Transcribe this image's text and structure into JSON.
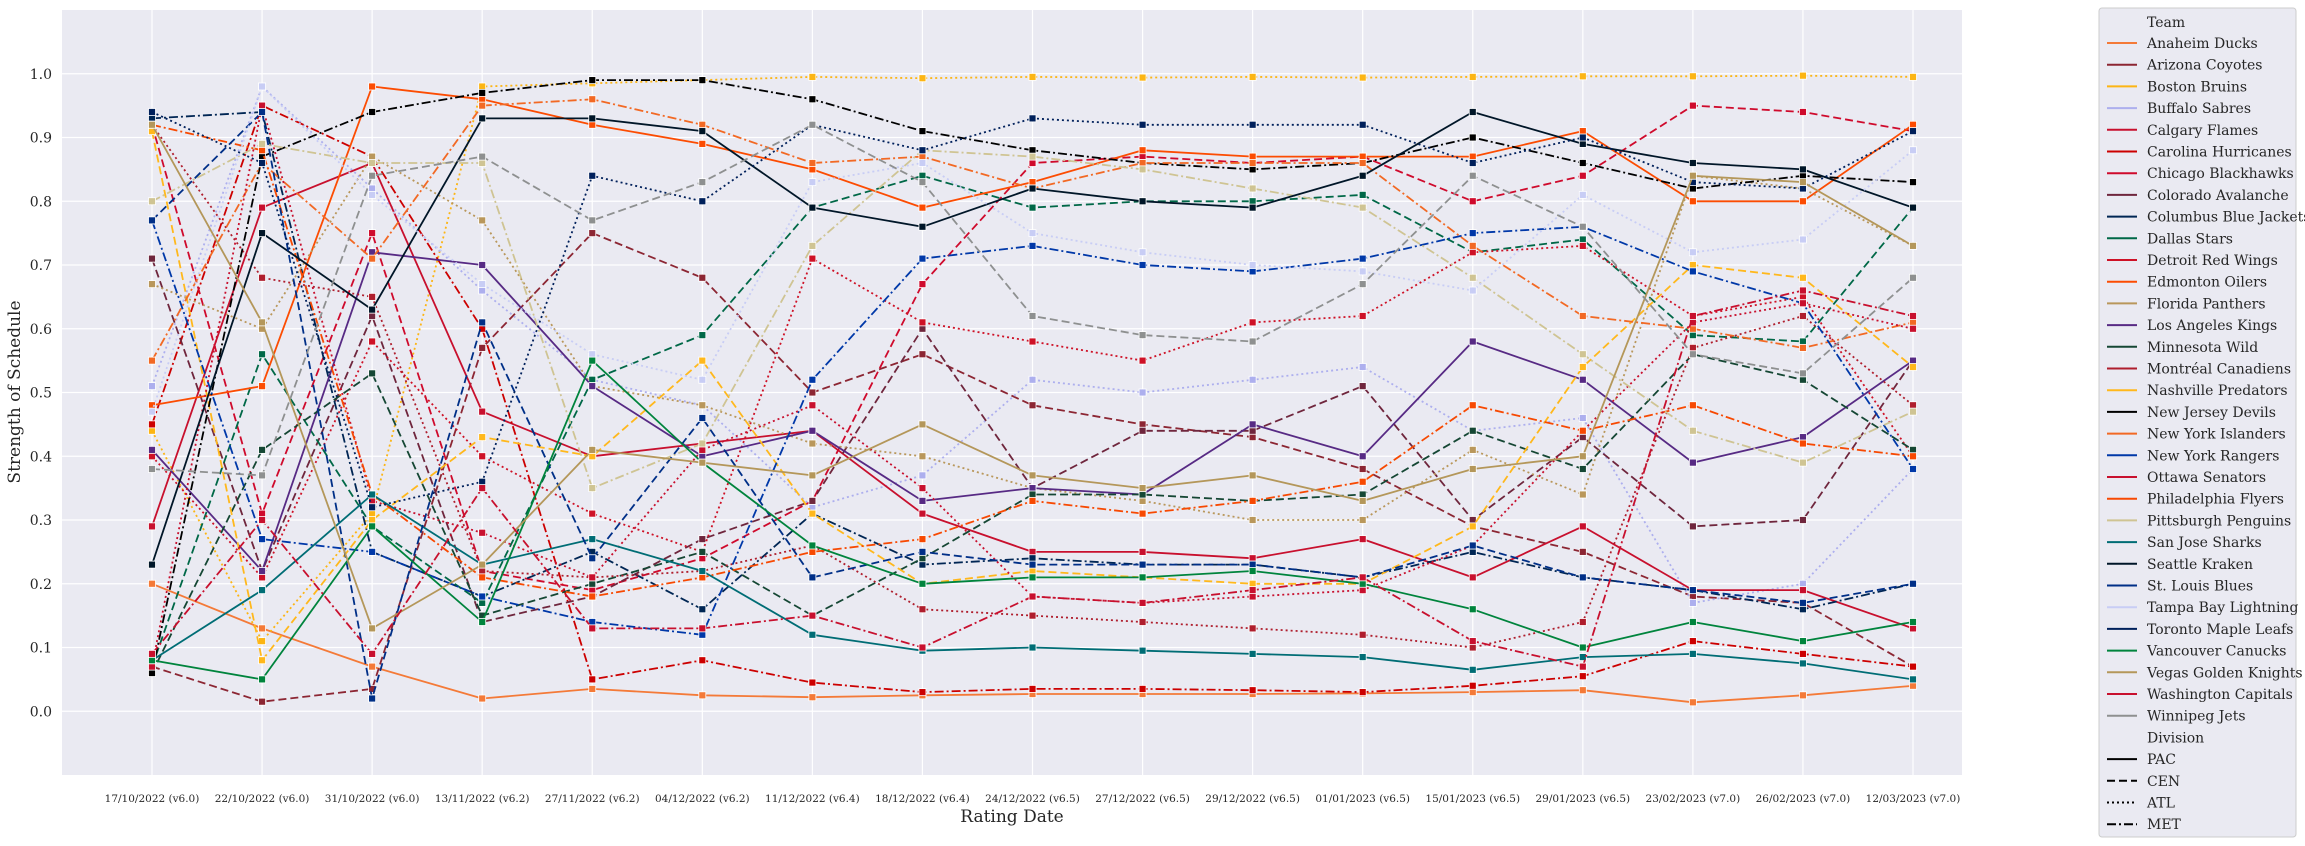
{
  "chart_data": {
    "type": "line",
    "xlabel": "Rating Date",
    "ylabel": "Strength of Schedule",
    "ylim": [
      -0.1,
      1.1
    ],
    "yticks": [
      0.0,
      0.1,
      0.2,
      0.3,
      0.4,
      0.5,
      0.6,
      0.7,
      0.8,
      0.9,
      1.0
    ],
    "ytick_labels": [
      "0.0",
      "0.1",
      "0.2",
      "0.3",
      "0.4",
      "0.5",
      "0.6",
      "0.7",
      "0.8",
      "0.9",
      "1.0"
    ],
    "grid": true,
    "legend_position": "outside-right",
    "categories": [
      "17/10/2022 (v6.0)",
      "22/10/2022 (v6.0)",
      "31/10/2022 (v6.0)",
      "13/11/2022 (v6.2)",
      "27/11/2022 (v6.2)",
      "04/12/2022 (v6.2)",
      "11/12/2022 (v6.4)",
      "18/12/2022 (v6.4)",
      "24/12/2022 (v6.5)",
      "27/12/2022 (v6.5)",
      "29/12/2022 (v6.5)",
      "01/01/2023 (v6.5)",
      "15/01/2023 (v6.5)",
      "29/01/2023 (v6.5)",
      "23/02/2023 (v7.0)",
      "26/02/2023 (v7.0)",
      "12/03/2023 (v7.0)"
    ],
    "legend": {
      "team_title": "Team",
      "division_title": "Division",
      "divisions": [
        {
          "name": "PAC",
          "dash": "solid"
        },
        {
          "name": "CEN",
          "dash": "dashed"
        },
        {
          "name": "ATL",
          "dash": "dotted"
        },
        {
          "name": "MET",
          "dash": "dashdot"
        }
      ]
    },
    "series": [
      {
        "name": "Anaheim Ducks",
        "color": "#f47a38",
        "division": "PAC",
        "values": [
          0.2,
          0.13,
          0.07,
          0.02,
          0.035,
          0.025,
          0.022,
          0.025,
          0.027,
          0.027,
          0.027,
          0.028,
          0.03,
          0.033,
          0.014,
          0.025,
          0.04
        ]
      },
      {
        "name": "Arizona Coyotes",
        "color": "#8c2633",
        "division": "CEN",
        "values": [
          0.07,
          0.015,
          0.035,
          0.57,
          0.75,
          0.68,
          0.5,
          0.56,
          0.48,
          0.45,
          0.43,
          0.38,
          0.29,
          0.25,
          0.18,
          0.17,
          0.07
        ]
      },
      {
        "name": "Boston Bruins",
        "color": "#fcb514",
        "division": "ATL",
        "values": [
          0.44,
          0.11,
          0.31,
          0.98,
          0.985,
          0.99,
          0.995,
          0.993,
          0.995,
          0.994,
          0.995,
          0.994,
          0.995,
          0.996,
          0.996,
          0.997,
          0.995
        ]
      },
      {
        "name": "Buffalo Sabres",
        "color": "#adafee",
        "division": "ATL",
        "values": [
          0.51,
          0.98,
          0.82,
          0.66,
          0.52,
          0.48,
          0.32,
          0.37,
          0.52,
          0.5,
          0.52,
          0.54,
          0.44,
          0.46,
          0.17,
          0.2,
          0.38
        ]
      },
      {
        "name": "Calgary Flames",
        "color": "#c8102e",
        "division": "PAC",
        "values": [
          0.29,
          0.79,
          0.86,
          0.47,
          0.4,
          0.42,
          0.44,
          0.31,
          0.25,
          0.25,
          0.24,
          0.27,
          0.21,
          0.29,
          0.19,
          0.19,
          0.13
        ]
      },
      {
        "name": "Carolina Hurricanes",
        "color": "#cc0000",
        "division": "MET",
        "values": [
          0.45,
          0.95,
          0.87,
          0.6,
          0.05,
          0.08,
          0.045,
          0.03,
          0.035,
          0.035,
          0.033,
          0.03,
          0.04,
          0.055,
          0.11,
          0.09,
          0.07
        ]
      },
      {
        "name": "Chicago Blackhawks",
        "color": "#cf0a2c",
        "division": "CEN",
        "values": [
          0.92,
          0.31,
          0.75,
          0.22,
          0.19,
          0.24,
          0.33,
          0.67,
          0.86,
          0.87,
          0.86,
          0.87,
          0.8,
          0.84,
          0.95,
          0.94,
          0.91
        ]
      },
      {
        "name": "Colorado Avalanche",
        "color": "#6f263d",
        "division": "CEN",
        "values": [
          0.71,
          0.22,
          0.62,
          0.14,
          0.18,
          0.27,
          0.33,
          0.6,
          0.35,
          0.44,
          0.44,
          0.51,
          0.3,
          0.43,
          0.29,
          0.3,
          0.55
        ]
      },
      {
        "name": "Columbus Blue Jackets",
        "color": "#002654",
        "division": "MET",
        "values": [
          0.93,
          0.94,
          0.25,
          0.18,
          0.25,
          0.16,
          0.31,
          0.23,
          0.24,
          0.23,
          0.23,
          0.21,
          0.25,
          0.21,
          0.19,
          0.16,
          0.2
        ]
      },
      {
        "name": "Dallas Stars",
        "color": "#006847",
        "division": "CEN",
        "values": [
          0.07,
          0.56,
          0.29,
          0.17,
          0.52,
          0.59,
          0.79,
          0.84,
          0.79,
          0.8,
          0.8,
          0.81,
          0.72,
          0.74,
          0.59,
          0.58,
          0.79
        ]
      },
      {
        "name": "Detroit Red Wings",
        "color": "#ce1126",
        "division": "ATL",
        "values": [
          0.4,
          0.21,
          0.58,
          0.4,
          0.31,
          0.25,
          0.71,
          0.61,
          0.58,
          0.55,
          0.61,
          0.62,
          0.72,
          0.73,
          0.62,
          0.65,
          0.4
        ]
      },
      {
        "name": "Edmonton Oilers",
        "color": "#fc4c02",
        "division": "PAC",
        "values": [
          0.48,
          0.51,
          0.98,
          0.96,
          0.92,
          0.89,
          0.85,
          0.79,
          0.83,
          0.88,
          0.87,
          0.87,
          0.87,
          0.91,
          0.8,
          0.8,
          0.92
        ]
      },
      {
        "name": "Florida Panthers",
        "color": "#b9975b",
        "division": "ATL",
        "values": [
          0.67,
          0.6,
          0.87,
          0.77,
          0.51,
          0.48,
          0.42,
          0.4,
          0.35,
          0.33,
          0.3,
          0.3,
          0.41,
          0.34,
          0.84,
          0.82,
          0.73
        ]
      },
      {
        "name": "Los Angeles Kings",
        "color": "#572a84",
        "division": "PAC",
        "values": [
          0.41,
          0.22,
          0.72,
          0.7,
          0.51,
          0.4,
          0.44,
          0.33,
          0.35,
          0.34,
          0.45,
          0.4,
          0.58,
          0.52,
          0.39,
          0.43,
          0.55
        ]
      },
      {
        "name": "Minnesota Wild",
        "color": "#154734",
        "division": "CEN",
        "values": [
          0.06,
          0.41,
          0.53,
          0.15,
          0.2,
          0.25,
          0.15,
          0.24,
          0.34,
          0.34,
          0.33,
          0.34,
          0.44,
          0.38,
          0.56,
          0.52,
          0.41
        ]
      },
      {
        "name": "Montréal Canadiens",
        "color": "#af1e2d",
        "division": "ATL",
        "values": [
          0.92,
          0.68,
          0.65,
          0.22,
          0.21,
          0.22,
          0.26,
          0.16,
          0.15,
          0.14,
          0.13,
          0.12,
          0.1,
          0.14,
          0.57,
          0.62,
          0.48
        ]
      },
      {
        "name": "Nashville Predators",
        "color": "#ffb81c",
        "division": "CEN",
        "values": [
          0.91,
          0.08,
          0.3,
          0.43,
          0.4,
          0.55,
          0.31,
          0.2,
          0.22,
          0.21,
          0.2,
          0.2,
          0.29,
          0.54,
          0.7,
          0.68,
          0.54
        ]
      },
      {
        "name": "New Jersey Devils",
        "color": "#000000",
        "division": "MET",
        "values": [
          0.06,
          0.87,
          0.94,
          0.97,
          0.99,
          0.99,
          0.96,
          0.91,
          0.88,
          0.86,
          0.85,
          0.86,
          0.9,
          0.86,
          0.82,
          0.84,
          0.83
        ]
      },
      {
        "name": "New York Islanders",
        "color": "#f26924",
        "division": "MET",
        "values": [
          0.55,
          0.86,
          0.71,
          0.95,
          0.96,
          0.92,
          0.86,
          0.87,
          0.82,
          0.86,
          0.86,
          0.86,
          0.73,
          0.62,
          0.6,
          0.57,
          0.61
        ]
      },
      {
        "name": "New York Rangers",
        "color": "#0038a8",
        "division": "MET",
        "values": [
          0.77,
          0.27,
          0.25,
          0.18,
          0.14,
          0.12,
          0.52,
          0.71,
          0.73,
          0.7,
          0.69,
          0.71,
          0.75,
          0.76,
          0.69,
          0.64,
          0.38
        ]
      },
      {
        "name": "Ottawa Senators",
        "color": "#c8102e",
        "division": "ATL",
        "values": [
          0.07,
          0.95,
          0.33,
          0.28,
          0.21,
          0.41,
          0.48,
          0.35,
          0.18,
          0.17,
          0.18,
          0.19,
          0.26,
          0.44,
          0.61,
          0.64,
          0.6
        ]
      },
      {
        "name": "Philadelphia Flyers",
        "color": "#f74902",
        "division": "MET",
        "values": [
          0.92,
          0.88,
          0.34,
          0.21,
          0.18,
          0.21,
          0.25,
          0.27,
          0.33,
          0.31,
          0.33,
          0.36,
          0.48,
          0.44,
          0.48,
          0.42,
          0.4
        ]
      },
      {
        "name": "Pittsburgh Penguins",
        "color": "#cfc493",
        "division": "MET",
        "values": [
          0.8,
          0.89,
          0.86,
          0.86,
          0.35,
          0.42,
          0.73,
          0.88,
          0.87,
          0.85,
          0.82,
          0.79,
          0.68,
          0.56,
          0.44,
          0.39,
          0.47
        ]
      },
      {
        "name": "San Jose Sharks",
        "color": "#006d75",
        "division": "PAC",
        "values": [
          0.08,
          0.19,
          0.34,
          0.23,
          0.27,
          0.22,
          0.12,
          0.095,
          0.1,
          0.095,
          0.09,
          0.085,
          0.065,
          0.085,
          0.09,
          0.075,
          0.05
        ]
      },
      {
        "name": "Seattle Kraken",
        "color": "#001628",
        "division": "PAC",
        "values": [
          0.23,
          0.75,
          0.63,
          0.93,
          0.93,
          0.91,
          0.79,
          0.76,
          0.82,
          0.8,
          0.79,
          0.84,
          0.94,
          0.89,
          0.86,
          0.85,
          0.79
        ]
      },
      {
        "name": "St. Louis Blues",
        "color": "#002f87",
        "division": "CEN",
        "values": [
          0.77,
          0.94,
          0.02,
          0.61,
          0.24,
          0.46,
          0.21,
          0.25,
          0.23,
          0.23,
          0.23,
          0.21,
          0.26,
          0.21,
          0.19,
          0.17,
          0.2
        ]
      },
      {
        "name": "Tampa Bay Lightning",
        "color": "#c8cdf5",
        "division": "ATL",
        "values": [
          0.47,
          0.98,
          0.81,
          0.67,
          0.56,
          0.52,
          0.83,
          0.86,
          0.75,
          0.72,
          0.7,
          0.69,
          0.66,
          0.81,
          0.72,
          0.74,
          0.88
        ]
      },
      {
        "name": "Toronto Maple Leafs",
        "color": "#00205b",
        "division": "ATL",
        "values": [
          0.94,
          0.86,
          0.32,
          0.36,
          0.84,
          0.8,
          0.92,
          0.88,
          0.93,
          0.92,
          0.92,
          0.92,
          0.86,
          0.9,
          0.83,
          0.82,
          0.91
        ]
      },
      {
        "name": "Vancouver Canucks",
        "color": "#00843d",
        "division": "PAC",
        "values": [
          0.08,
          0.05,
          0.29,
          0.14,
          0.55,
          0.39,
          0.26,
          0.2,
          0.21,
          0.21,
          0.22,
          0.2,
          0.16,
          0.1,
          0.14,
          0.11,
          0.14
        ]
      },
      {
        "name": "Vegas Golden Knights",
        "color": "#b4975a",
        "division": "PAC",
        "values": [
          0.92,
          0.61,
          0.13,
          0.23,
          0.41,
          0.39,
          0.37,
          0.45,
          0.37,
          0.35,
          0.37,
          0.33,
          0.38,
          0.4,
          0.84,
          0.83,
          0.73
        ]
      },
      {
        "name": "Washington Capitals",
        "color": "#c8102e",
        "division": "MET",
        "values": [
          0.09,
          0.3,
          0.09,
          0.35,
          0.13,
          0.13,
          0.15,
          0.1,
          0.18,
          0.17,
          0.19,
          0.21,
          0.11,
          0.07,
          0.62,
          0.66,
          0.62
        ]
      },
      {
        "name": "Winnipeg Jets",
        "color": "#8e9090",
        "division": "CEN",
        "values": [
          0.38,
          0.37,
          0.84,
          0.87,
          0.77,
          0.83,
          0.92,
          0.83,
          0.62,
          0.59,
          0.58,
          0.67,
          0.84,
          0.76,
          0.56,
          0.53,
          0.68
        ]
      }
    ]
  }
}
